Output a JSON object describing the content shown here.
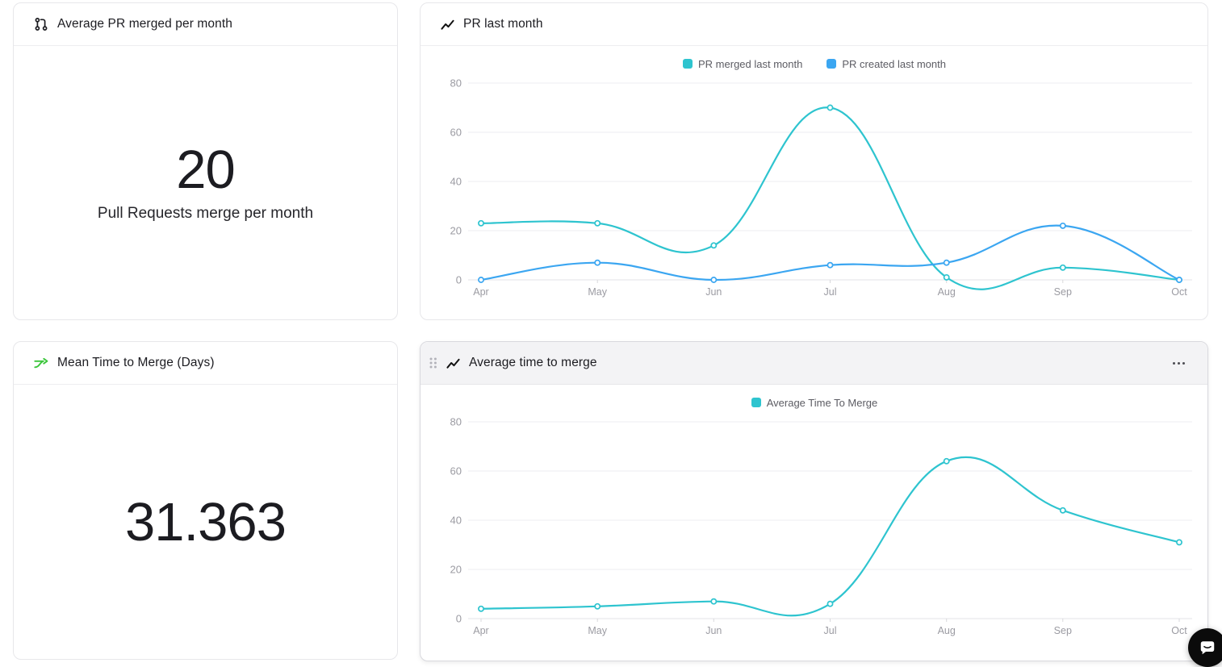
{
  "cards": {
    "avg_pr_merged": {
      "title": "Average PR merged per month",
      "value": "20",
      "caption": "Pull Requests merge per month"
    },
    "pr_last_month": {
      "title": "PR last month"
    },
    "mean_time_to_merge": {
      "title": "Mean Time to Merge (Days)",
      "value": "31.363"
    },
    "avg_time_to_merge": {
      "title": "Average time to merge"
    }
  },
  "colors": {
    "teal": "#2ec4cf",
    "blue": "#3ba6f1",
    "green_icon": "#3bc53b",
    "grid": "#ededf0",
    "axis_label": "#9b9ba2"
  },
  "chart_data": [
    {
      "type": "line",
      "title": "PR last month",
      "categories": [
        "Apr",
        "May",
        "Jun",
        "Jul",
        "Aug",
        "Sep",
        "Oct"
      ],
      "series": [
        {
          "name": "PR merged last month",
          "color": "#2ec4cf",
          "values": [
            23,
            23,
            14,
            70,
            1,
            5,
            0
          ]
        },
        {
          "name": "PR created last month",
          "color": "#3ba6f1",
          "values": [
            0,
            7,
            0,
            6,
            7,
            22,
            0
          ]
        }
      ],
      "ylim": [
        0,
        80
      ],
      "yticks": [
        0,
        20,
        40,
        60,
        80
      ],
      "legend_position": "top",
      "grid": true
    },
    {
      "type": "line",
      "title": "Average time to merge",
      "categories": [
        "Apr",
        "May",
        "Jun",
        "Jul",
        "Aug",
        "Sep",
        "Oct"
      ],
      "series": [
        {
          "name": "Average Time To Merge",
          "color": "#2ec4cf",
          "values": [
            4,
            5,
            7,
            6,
            64,
            44,
            31
          ]
        }
      ],
      "ylim": [
        0,
        80
      ],
      "yticks": [
        0,
        20,
        40,
        60,
        80
      ],
      "legend_position": "top",
      "grid": true
    }
  ]
}
